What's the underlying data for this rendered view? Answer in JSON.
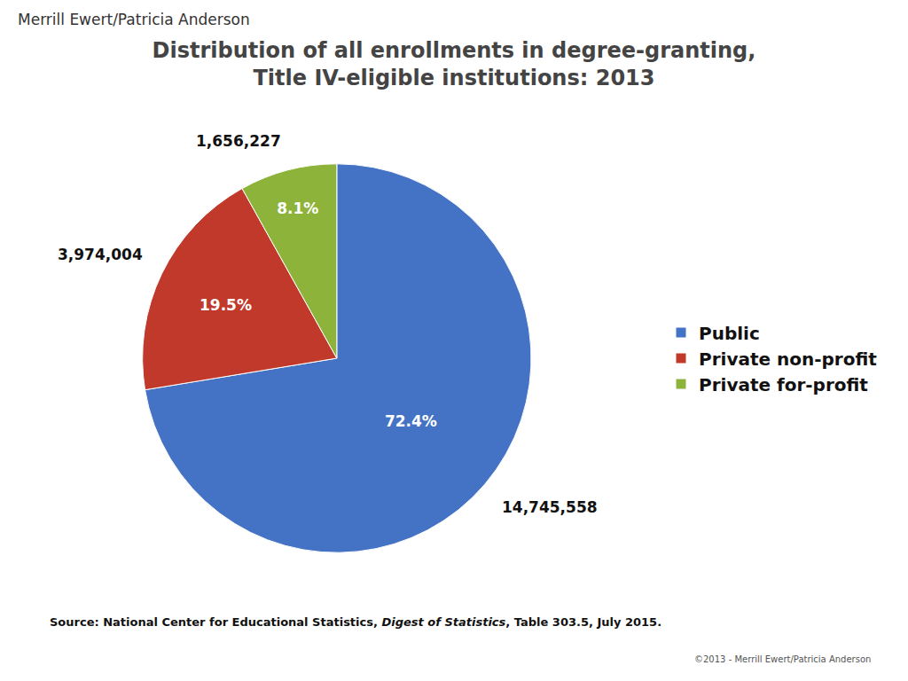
{
  "chart_data": {
    "type": "pie",
    "title": [
      "Distribution of all enrollments in degree-granting,",
      "Title IV-eligible institutions: 2013"
    ],
    "header": "Merrill Ewert/Patricia Anderson",
    "source": [
      "Source: National Center for Educational Statistics, ",
      "Digest of Statistics",
      ", Table 303.5, July 2015."
    ],
    "copyright": "©2013 - Merrill Ewert/Patricia Anderson",
    "categories": [
      "Public",
      "Private non-profit",
      "Private for-profit"
    ],
    "values": [
      72.4,
      19.5,
      8.1
    ],
    "value_labels": [
      "72.4%",
      "19.5%",
      "8.1%"
    ],
    "data_labels": true,
    "annotations": [
      "14,745,558",
      "3,974,004",
      "1,656,227"
    ],
    "colors": [
      "#4472C4",
      "#C0392B",
      "#8DB33A"
    ],
    "legend": "right"
  }
}
